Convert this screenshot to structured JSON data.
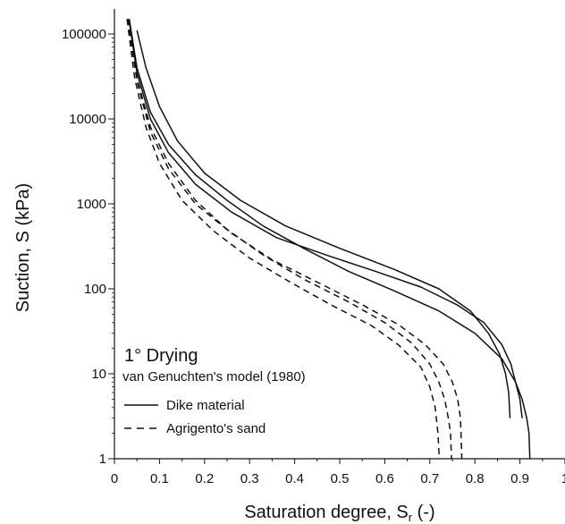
{
  "chart_data": {
    "type": "line",
    "title": "",
    "xlabel": "Saturation degree, S",
    "xlabel_sub": "r",
    "xlabel_unit": " (-)",
    "ylabel": "Suction, S (kPa)",
    "xlim": [
      0,
      1
    ],
    "ylim": [
      1,
      100000
    ],
    "yscale": "log",
    "grid": false,
    "x_ticks": [
      0,
      0.1,
      0.2,
      0.3,
      0.4,
      0.5,
      0.6,
      0.7,
      0.8,
      0.9,
      1
    ],
    "x_tick_labels": [
      "0",
      "0.1",
      "0.2",
      "0.3",
      "0.4",
      "0.5",
      "0.6",
      "0.7",
      "0.8",
      "0.9",
      "1"
    ],
    "y_ticks": [
      1,
      10,
      100,
      1000,
      10000,
      100000
    ],
    "y_tick_labels": [
      "1",
      "10",
      "100",
      "1000",
      "10000",
      "100000"
    ],
    "annotation_title": "1° Drying",
    "annotation_subtitle": "van Genuchten's model (1980)",
    "legend": [
      {
        "label": "Dike material",
        "style": "solid"
      },
      {
        "label": "Agrigento's sand",
        "style": "dashed"
      }
    ],
    "series": [
      {
        "group": "Dike material",
        "style": "solid",
        "x": [
          0.033,
          0.05,
          0.08,
          0.12,
          0.18,
          0.25,
          0.33,
          0.42,
          0.52,
          0.62,
          0.72,
          0.8,
          0.86,
          0.89,
          0.905,
          0.915,
          0.92,
          0.922
        ],
        "y": [
          150000,
          40000,
          12000,
          5000,
          2200,
          1100,
          550,
          300,
          160,
          95,
          55,
          30,
          15,
          8,
          5,
          3,
          2,
          1
        ]
      },
      {
        "group": "Dike material",
        "style": "solid",
        "x": [
          0.032,
          0.05,
          0.08,
          0.12,
          0.18,
          0.26,
          0.36,
          0.47,
          0.58,
          0.68,
          0.76,
          0.82,
          0.86,
          0.88,
          0.89,
          0.9,
          0.905
        ],
        "y": [
          150000,
          35000,
          10000,
          4000,
          1700,
          800,
          400,
          250,
          160,
          105,
          65,
          40,
          22,
          13,
          8,
          5,
          3
        ]
      },
      {
        "group": "Dike material",
        "style": "solid",
        "x": [
          0.05,
          0.07,
          0.1,
          0.14,
          0.2,
          0.28,
          0.38,
          0.5,
          0.62,
          0.72,
          0.79,
          0.83,
          0.855,
          0.868,
          0.875,
          0.878
        ],
        "y": [
          110000,
          40000,
          14000,
          5500,
          2300,
          1100,
          550,
          300,
          170,
          100,
          55,
          30,
          17,
          10,
          6,
          3
        ]
      },
      {
        "group": "Agrigento's sand",
        "style": "dashed",
        "x": [
          0.03,
          0.05,
          0.08,
          0.12,
          0.18,
          0.25,
          0.33,
          0.42,
          0.52,
          0.6,
          0.66,
          0.7,
          0.72,
          0.733,
          0.741,
          0.746,
          0.748
        ],
        "y": [
          150000,
          30000,
          8000,
          3000,
          1100,
          500,
          250,
          130,
          70,
          40,
          23,
          13,
          8,
          5,
          3,
          2,
          1
        ]
      },
      {
        "group": "Agrigento's sand",
        "style": "dashed",
        "x": [
          0.03,
          0.05,
          0.08,
          0.12,
          0.18,
          0.26,
          0.35,
          0.45,
          0.55,
          0.63,
          0.69,
          0.73,
          0.75,
          0.762,
          0.768,
          0.771
        ],
        "y": [
          150000,
          28000,
          7000,
          2600,
          1000,
          450,
          220,
          120,
          65,
          38,
          22,
          13,
          8,
          5,
          3,
          1
        ]
      },
      {
        "group": "Agrigento's sand",
        "style": "dashed",
        "x": [
          0.028,
          0.045,
          0.07,
          0.1,
          0.15,
          0.22,
          0.3,
          0.39,
          0.48,
          0.57,
          0.63,
          0.68,
          0.7,
          0.712,
          0.718,
          0.721
        ],
        "y": [
          150000,
          30000,
          8000,
          3000,
          1100,
          480,
          230,
          120,
          65,
          37,
          22,
          12,
          7,
          4,
          2,
          1
        ]
      }
    ]
  }
}
